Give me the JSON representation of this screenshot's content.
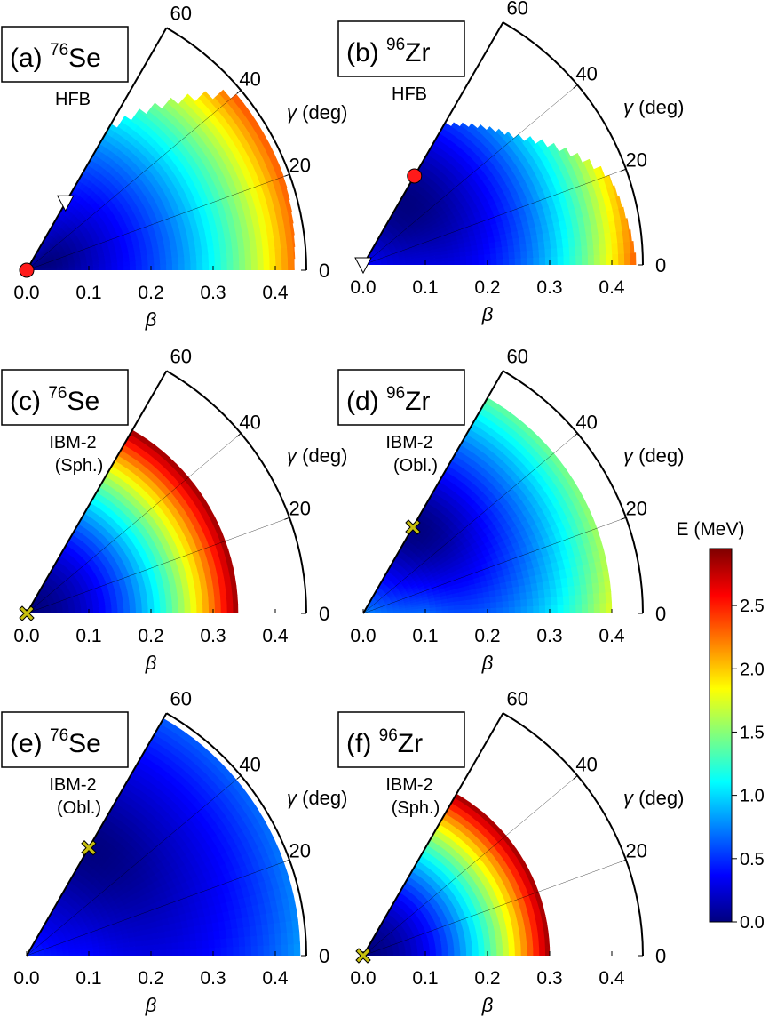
{
  "chart_data": [
    {
      "type": "heatmap",
      "panel": "(a)",
      "title": {
        "prefix": "(a) ",
        "mass": "76",
        "element": "Se"
      },
      "method": [
        "HFB"
      ],
      "xlabel": "β",
      "ylabel": "γ (deg)",
      "xlim": [
        0,
        0.45
      ],
      "gamma_range": [
        0,
        60
      ],
      "xticks": [
        "0.0",
        "0.1",
        "0.2",
        "0.3",
        "0.4"
      ],
      "gamma_ticks": [
        "0",
        "20",
        "40",
        "60"
      ],
      "energy_cap": 2.95,
      "surface": {
        "kind": "hfb",
        "beta_min": 0.03,
        "gamma_min": 20,
        "depth": 0.15,
        "stiffness": 13.0,
        "gamma_stiffness": 0.15,
        "beta_max_by_gamma": [
          [
            0,
            0.43
          ],
          [
            20,
            0.44
          ],
          [
            40,
            0.44
          ],
          [
            60,
            0.26
          ]
        ]
      },
      "markers": [
        {
          "shape": "circle",
          "color": "#ff1a1a",
          "beta": 0.0,
          "gamma": 0
        },
        {
          "shape": "triangle-down",
          "color": "#ffffff",
          "beta": 0.125,
          "gamma": 60
        }
      ]
    },
    {
      "type": "heatmap",
      "panel": "(b)",
      "title": {
        "prefix": "(b) ",
        "mass": "96",
        "element": "Zr"
      },
      "method": [
        "HFB"
      ],
      "xlabel": "β",
      "ylabel": "γ (deg)",
      "xlim": [
        0,
        0.45
      ],
      "gamma_range": [
        0,
        60
      ],
      "xticks": [
        "0.0",
        "0.1",
        "0.2",
        "0.3",
        "0.4"
      ],
      "gamma_ticks": [
        "0",
        "20",
        "40",
        "60"
      ],
      "energy_cap": 2.95,
      "surface": {
        "kind": "hfb",
        "beta_min": 0.12,
        "gamma_min": 55,
        "depth": 0.1,
        "stiffness": 20.0,
        "gamma_stiffness": 0.15,
        "beta_max_by_gamma": [
          [
            0,
            0.44
          ],
          [
            20,
            0.42
          ],
          [
            40,
            0.32
          ],
          [
            60,
            0.26
          ]
        ]
      },
      "markers": [
        {
          "shape": "circle",
          "color": "#ff1a1a",
          "beta": 0.165,
          "gamma": 60
        },
        {
          "shape": "triangle-down",
          "color": "#ffffff",
          "beta": 0.0,
          "gamma": 0
        }
      ]
    },
    {
      "type": "heatmap",
      "panel": "(c)",
      "title": {
        "prefix": "(c) ",
        "mass": "76",
        "element": "Se"
      },
      "method": [
        "IBM-2",
        "(Sph.)"
      ],
      "xlabel": "β",
      "ylabel": "γ (deg)",
      "xlim": [
        0,
        0.45
      ],
      "gamma_range": [
        0,
        60
      ],
      "xticks": [
        "0.0",
        "0.1",
        "0.2",
        "0.3",
        "0.4"
      ],
      "gamma_ticks": [
        "0",
        "20",
        "40",
        "60"
      ],
      "energy_cap": 2.95,
      "surface": {
        "kind": "ibm",
        "beta_min": 0.0,
        "gamma_min": 60,
        "depth": 0.0,
        "stiffness": 25.0,
        "gamma_stiffness": 0.0,
        "beta_max_by_gamma": [
          [
            0,
            0.34
          ],
          [
            60,
            0.34
          ]
        ]
      },
      "markers": [
        {
          "shape": "cross",
          "color": "#c8c010",
          "beta": 0.0,
          "gamma": 0
        }
      ]
    },
    {
      "type": "heatmap",
      "panel": "(d)",
      "title": {
        "prefix": "(d) ",
        "mass": "96",
        "element": "Zr"
      },
      "method": [
        "IBM-2",
        "(Obl.)"
      ],
      "xlabel": "β",
      "ylabel": "γ (deg)",
      "xlim": [
        0,
        0.45
      ],
      "gamma_range": [
        0,
        60
      ],
      "xticks": [
        "0.0",
        "0.1",
        "0.2",
        "0.3",
        "0.4"
      ],
      "gamma_ticks": [
        "0",
        "20",
        "40",
        "60"
      ],
      "energy_cap": 2.95,
      "surface": {
        "kind": "ibm",
        "beta_min": 0.16,
        "gamma_min": 60,
        "depth": 0.25,
        "stiffness": 20.0,
        "gamma_stiffness": 0.25,
        "beta_max_by_gamma": [
          [
            0,
            0.4
          ],
          [
            60,
            0.4
          ]
        ]
      },
      "markers": [
        {
          "shape": "cross",
          "color": "#c8c010",
          "beta": 0.16,
          "gamma": 60
        }
      ]
    },
    {
      "type": "heatmap",
      "panel": "(e)",
      "title": {
        "prefix": "(e) ",
        "mass": "76",
        "element": "Se"
      },
      "method": [
        "IBM-2",
        "(Obl.)"
      ],
      "xlabel": "β",
      "ylabel": "γ (deg)",
      "xlim": [
        0,
        0.45
      ],
      "gamma_range": [
        0,
        60
      ],
      "xticks": [
        "0.0",
        "0.1",
        "0.2",
        "0.3",
        "0.4"
      ],
      "gamma_ticks": [
        "0",
        "20",
        "40",
        "60"
      ],
      "energy_cap": 2.95,
      "surface": {
        "kind": "ibm",
        "beta_min": 0.2,
        "gamma_min": 60,
        "depth": 0.12,
        "stiffness": 9.0,
        "gamma_stiffness": 0.12,
        "beta_max_by_gamma": [
          [
            0,
            0.44
          ],
          [
            60,
            0.44
          ]
        ]
      },
      "markers": [
        {
          "shape": "cross",
          "color": "#c8c010",
          "beta": 0.2,
          "gamma": 60
        }
      ]
    },
    {
      "type": "heatmap",
      "panel": "(f)",
      "title": {
        "prefix": "(f) ",
        "mass": "96",
        "element": "Zr"
      },
      "method": [
        "IBM-2",
        "(Sph.)"
      ],
      "xlabel": "β",
      "ylabel": "γ (deg)",
      "xlim": [
        0,
        0.45
      ],
      "gamma_range": [
        0,
        60
      ],
      "xticks": [
        "0.0",
        "0.1",
        "0.2",
        "0.3",
        "0.4"
      ],
      "gamma_ticks": [
        "0",
        "20",
        "40",
        "60"
      ],
      "energy_cap": 2.95,
      "surface": {
        "kind": "ibm",
        "beta_min": 0.0,
        "gamma_min": 60,
        "depth": 0.0,
        "stiffness": 32.0,
        "gamma_stiffness": 0.0,
        "beta_max_by_gamma": [
          [
            0,
            0.3
          ],
          [
            60,
            0.3
          ]
        ]
      },
      "markers": [
        {
          "shape": "cross",
          "color": "#c8c010",
          "beta": 0.0,
          "gamma": 0
        }
      ]
    }
  ],
  "colorbar": {
    "label": "E (MeV)",
    "range": [
      0,
      2.95
    ],
    "ticks": [
      "0.0",
      "0.5",
      "1.0",
      "1.5",
      "2.0",
      "2.5"
    ],
    "tick_values": [
      0,
      0.5,
      1.0,
      1.5,
      2.0,
      2.5
    ],
    "colormap": "jet",
    "colors": [
      "#00007f",
      "#0000ff",
      "#007fff",
      "#00ffff",
      "#7fff7f",
      "#ffff00",
      "#ff7f00",
      "#ff0000",
      "#7f0000"
    ]
  }
}
